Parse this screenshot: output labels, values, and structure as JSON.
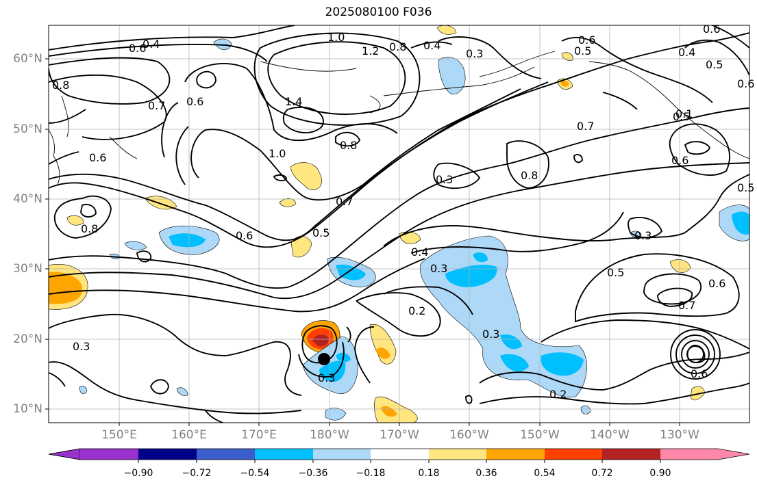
{
  "title": "2025080100 F036",
  "map": {
    "lat_labels": [
      "60°N",
      "50°N",
      "40°N",
      "30°N",
      "20°N",
      "10°N"
    ],
    "lon_labels": [
      "150°E",
      "160°E",
      "170°E",
      "180°W",
      "170°W",
      "160°W",
      "150°W",
      "140°W",
      "130°W"
    ],
    "contour_labels": [
      "0.4",
      "0.6",
      "0.8",
      "0.7",
      "0.6",
      "0.6",
      "1.0",
      "1.2",
      "0.8",
      "0.4",
      "0.3",
      "0.6",
      "0.5",
      "0.6",
      "0.4",
      "0.5",
      "0.6",
      "1.4",
      "0.8",
      "1.0",
      "0.7",
      "0.5",
      "0.6",
      "0.8",
      "0.3",
      "0.7",
      "0.5",
      "0.6",
      "0.5",
      "0.3",
      "0.4",
      "0.3",
      "0.2",
      "0.5",
      "0.6",
      "0.7",
      "0.3",
      "0.2",
      "0.3",
      "0.3",
      "0.6",
      "0.8",
      "0.1"
    ],
    "storm_marker": "tropical-cyclone-center",
    "coastline_color": "#000000",
    "grid_color": "#b0b0b0"
  },
  "colorbar": {
    "ticks": [
      "−0.90",
      "−0.72",
      "−0.54",
      "−0.36",
      "−0.18",
      "0.18",
      "0.36",
      "0.54",
      "0.72",
      "0.90"
    ],
    "colors": [
      "#9932cc",
      "#00008b",
      "#3a5fcd",
      "#00bfff",
      "#add8f7",
      "#ffffff",
      "#ffe680",
      "#ffa500",
      "#ff4000",
      "#b22222",
      "#ff88aa"
    ]
  }
}
